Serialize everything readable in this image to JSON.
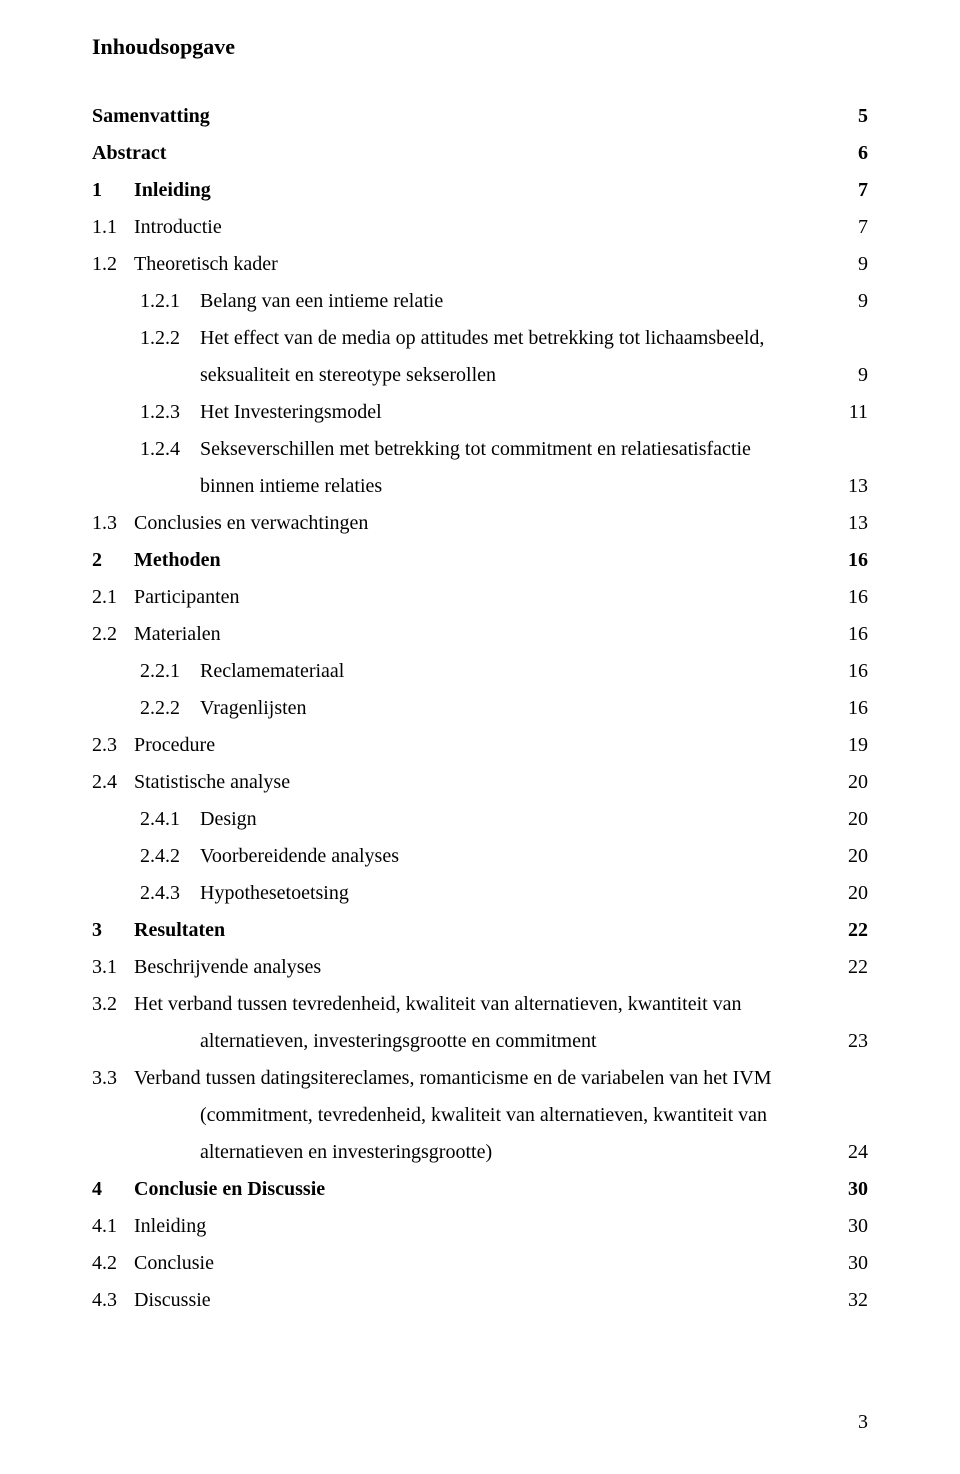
{
  "title": "Inhoudsopgave",
  "entries": [
    {
      "lvl": 0,
      "bold": true,
      "num": "",
      "txt": "Samenvatting",
      "pg": "5"
    },
    {
      "lvl": 0,
      "bold": true,
      "num": "",
      "txt": "Abstract",
      "pg": "6"
    },
    {
      "lvl": 0,
      "bold": true,
      "num": "1",
      "txt": "Inleiding",
      "pg": "7"
    },
    {
      "lvl": 1,
      "bold": false,
      "num": "1.1",
      "txt": "Introductie",
      "pg": "7"
    },
    {
      "lvl": 1,
      "bold": false,
      "num": "1.2",
      "txt": "Theoretisch kader",
      "pg": "9"
    },
    {
      "lvl": 2,
      "bold": false,
      "num": "1.2.1",
      "txt": "Belang van een intieme relatie",
      "pg": "9"
    },
    {
      "lvl": 2,
      "bold": false,
      "num": "1.2.2",
      "txt": "Het effect van de media op attitudes met betrekking tot lichaamsbeeld,",
      "pg": ""
    },
    {
      "lvl": "cont",
      "bold": false,
      "num": "",
      "txt": "seksualiteit en stereotype sekserollen",
      "pg": "9"
    },
    {
      "lvl": 2,
      "bold": false,
      "num": "1.2.3",
      "txt": "Het Investeringsmodel",
      "pg": "11"
    },
    {
      "lvl": 2,
      "bold": false,
      "num": "1.2.4",
      "txt": "Sekseverschillen met betrekking tot commitment en relatiesatisfactie",
      "pg": ""
    },
    {
      "lvl": "cont",
      "bold": false,
      "num": "",
      "txt": "binnen intieme relaties",
      "pg": "13"
    },
    {
      "lvl": 1,
      "bold": false,
      "num": "1.3",
      "txt": "Conclusies en verwachtingen",
      "pg": "13"
    },
    {
      "lvl": 0,
      "bold": true,
      "num": "2",
      "txt": "Methoden",
      "pg": "16"
    },
    {
      "lvl": 1,
      "bold": false,
      "num": "2.1",
      "txt": "Participanten",
      "pg": "16"
    },
    {
      "lvl": 1,
      "bold": false,
      "num": "2.2",
      "txt": "Materialen",
      "pg": "16"
    },
    {
      "lvl": 2,
      "bold": false,
      "num": "2.2.1",
      "txt": "Reclamemateriaal",
      "pg": "16"
    },
    {
      "lvl": 2,
      "bold": false,
      "num": "2.2.2",
      "txt": "Vragenlijsten",
      "pg": "16"
    },
    {
      "lvl": 1,
      "bold": false,
      "num": "2.3",
      "txt": "Procedure",
      "pg": "19"
    },
    {
      "lvl": 1,
      "bold": false,
      "num": "2.4",
      "txt": "Statistische analyse",
      "pg": "20"
    },
    {
      "lvl": 2,
      "bold": false,
      "num": "2.4.1",
      "txt": "Design",
      "pg": "20"
    },
    {
      "lvl": 2,
      "bold": false,
      "num": "2.4.2",
      "txt": "Voorbereidende analyses",
      "pg": "20"
    },
    {
      "lvl": 2,
      "bold": false,
      "num": "2.4.3",
      "txt": "Hypothesetoetsing",
      "pg": "20"
    },
    {
      "lvl": 0,
      "bold": true,
      "num": "3",
      "txt": "Resultaten",
      "pg": "22"
    },
    {
      "lvl": 1,
      "bold": false,
      "num": "3.1",
      "txt": "Beschrijvende analyses",
      "pg": "22"
    },
    {
      "lvl": 1,
      "bold": false,
      "num": "3.2",
      "txt": "Het verband tussen tevredenheid, kwaliteit van alternatieven, kwantiteit van",
      "pg": ""
    },
    {
      "lvl": "cont",
      "bold": false,
      "num": "",
      "txt": "alternatieven, investeringsgrootte en commitment",
      "pg": "23"
    },
    {
      "lvl": 1,
      "bold": false,
      "num": "3.3",
      "txt": "Verband tussen datingsitereclames, romanticisme en de variabelen van het IVM",
      "pg": ""
    },
    {
      "lvl": "cont",
      "bold": false,
      "num": "",
      "txt": "(commitment, tevredenheid, kwaliteit van alternatieven, kwantiteit van",
      "pg": ""
    },
    {
      "lvl": "cont",
      "bold": false,
      "num": "",
      "txt": "alternatieven en investeringsgrootte)",
      "pg": "24"
    },
    {
      "lvl": 0,
      "bold": true,
      "num": "4",
      "txt": "Conclusie en Discussie",
      "pg": "30"
    },
    {
      "lvl": 1,
      "bold": false,
      "num": "4.1",
      "txt": "Inleiding",
      "pg": "30"
    },
    {
      "lvl": 1,
      "bold": false,
      "num": "4.2",
      "txt": "Conclusie",
      "pg": "30"
    },
    {
      "lvl": 1,
      "bold": false,
      "num": "4.3",
      "txt": "Discussie",
      "pg": "32"
    }
  ],
  "page_number": "3"
}
